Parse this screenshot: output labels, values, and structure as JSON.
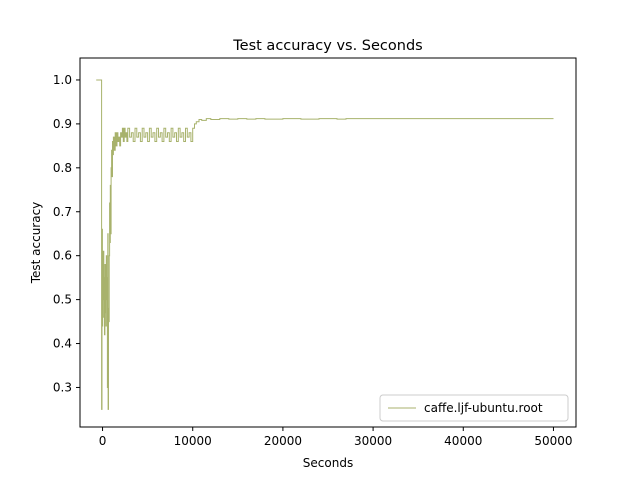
{
  "chart_data": {
    "type": "line",
    "title": "Test accuracy  vs. Seconds",
    "xlabel": "Seconds",
    "ylabel": "Test accuracy",
    "xlim": [
      -2500,
      52500
    ],
    "ylim": [
      0.21,
      1.05
    ],
    "xticks": [
      0,
      10000,
      20000,
      30000,
      40000,
      50000
    ],
    "yticks": [
      0.3,
      0.4,
      0.5,
      0.6,
      0.7,
      0.8,
      0.9,
      1.0
    ],
    "xtick_labels": [
      "0",
      "10000",
      "20000",
      "30000",
      "40000",
      "50000"
    ],
    "ytick_labels": [
      "0.3",
      "0.4",
      "0.5",
      "0.6",
      "0.7",
      "0.8",
      "0.9",
      "1.0"
    ],
    "grid": false,
    "legend_position": "lower-right",
    "series": [
      {
        "name": "caffe.ljf-ubuntu.root",
        "color": "#a8b26c",
        "step": true,
        "x": [
          -700,
          -100,
          -60,
          -20,
          20,
          60,
          100,
          140,
          180,
          220,
          260,
          300,
          340,
          380,
          420,
          460,
          500,
          540,
          580,
          620,
          660,
          700,
          740,
          780,
          820,
          860,
          900,
          950,
          1000,
          1050,
          1100,
          1150,
          1200,
          1300,
          1400,
          1500,
          1600,
          1700,
          1800,
          1900,
          2000,
          2100,
          2200,
          2300,
          2400,
          2500,
          2600,
          2700,
          2800,
          3000,
          3200,
          3400,
          3600,
          3800,
          4000,
          4200,
          4400,
          4600,
          4800,
          5000,
          5200,
          5400,
          5600,
          5800,
          6000,
          6200,
          6400,
          6600,
          6800,
          7000,
          7200,
          7400,
          7600,
          7800,
          8000,
          8200,
          8400,
          8600,
          8800,
          9000,
          9200,
          9400,
          9600,
          9800,
          10000,
          10200,
          10400,
          10700,
          11000,
          11500,
          12000,
          13000,
          14000,
          15000,
          16000,
          17000,
          18000,
          20000,
          22000,
          24000,
          26000,
          27000,
          28000,
          30000,
          35000,
          40000,
          45000,
          50000
        ],
        "y": [
          1.0,
          0.25,
          0.66,
          0.44,
          0.59,
          0.46,
          0.61,
          0.5,
          0.55,
          0.42,
          0.58,
          0.47,
          0.53,
          0.44,
          0.6,
          0.5,
          0.55,
          0.3,
          0.65,
          0.25,
          0.48,
          0.45,
          0.6,
          0.72,
          0.63,
          0.76,
          0.65,
          0.8,
          0.84,
          0.78,
          0.86,
          0.83,
          0.87,
          0.84,
          0.88,
          0.85,
          0.88,
          0.86,
          0.87,
          0.85,
          0.88,
          0.87,
          0.89,
          0.86,
          0.89,
          0.87,
          0.88,
          0.86,
          0.89,
          0.87,
          0.88,
          0.86,
          0.89,
          0.87,
          0.88,
          0.86,
          0.89,
          0.87,
          0.88,
          0.86,
          0.89,
          0.87,
          0.88,
          0.86,
          0.89,
          0.87,
          0.88,
          0.86,
          0.89,
          0.87,
          0.88,
          0.86,
          0.89,
          0.87,
          0.88,
          0.86,
          0.89,
          0.87,
          0.88,
          0.86,
          0.89,
          0.87,
          0.88,
          0.86,
          0.89,
          0.9,
          0.905,
          0.91,
          0.908,
          0.912,
          0.91,
          0.912,
          0.911,
          0.912,
          0.911,
          0.912,
          0.911,
          0.912,
          0.911,
          0.912,
          0.911,
          0.912,
          0.912,
          0.912,
          0.912,
          0.912,
          0.912,
          0.912
        ]
      }
    ]
  }
}
